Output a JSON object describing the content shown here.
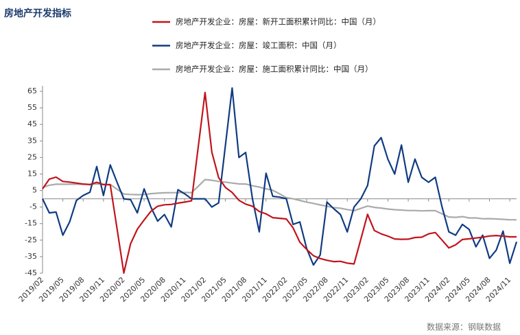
{
  "chart_data": {
    "type": "line",
    "title": "房地产开发指标",
    "source": "数据来源：钢联数据",
    "categories": [
      "2019/02",
      null,
      null,
      "2019/05",
      null,
      null,
      "2019/08",
      null,
      null,
      "2019/11",
      null,
      null,
      "2020/02",
      null,
      null,
      "2020/05",
      null,
      null,
      "2020/08",
      null,
      null,
      "2020/11",
      null,
      null,
      "2021/02",
      null,
      null,
      "2021/05",
      null,
      null,
      "2021/08",
      null,
      null,
      "2021/11",
      null,
      null,
      "2022/02",
      null,
      null,
      "2022/05",
      null,
      null,
      "2022/08",
      null,
      null,
      "2022/11",
      null,
      null,
      "2023/02",
      null,
      null,
      "2023/05",
      null,
      null,
      "2023/08",
      null,
      null,
      "2023/11",
      null,
      null,
      "2024/02",
      null,
      null,
      "2024/05",
      null,
      null,
      "2024/08",
      null,
      null,
      "2024/11",
      null
    ],
    "series": [
      {
        "name": "房地产开发企业：房屋：新开工面积累计同比：中国（月）",
        "color": "#c0141c",
        "values": [
          6,
          11.9,
          13.1,
          10.5,
          10.1,
          9.5,
          8.9,
          8.6,
          10,
          8.6,
          8.5,
          -18,
          -44.9,
          -27.2,
          -18.4,
          -12.8,
          -7.6,
          -4.5,
          -3.6,
          -3.4,
          -2.6,
          -2.0,
          -1.2,
          31.5,
          64.3,
          28.2,
          12.8,
          6.9,
          3.8,
          -0.9,
          -3.2,
          -4.5,
          -7.7,
          -9.1,
          -11.4,
          -11.8,
          -12.2,
          -17.5,
          -26.3,
          -30.6,
          -34.4,
          -36.1,
          -37.2,
          -38,
          -37.8,
          -38.9,
          -39.4,
          -24.4,
          -9.4,
          -19.2,
          -21.2,
          -22.6,
          -24.3,
          -24.5,
          -24.4,
          -23.4,
          -23.2,
          -21.2,
          -20.4,
          -25,
          -29.7,
          -27.8,
          -24.6,
          -24.2,
          -23.7,
          -23.2,
          -22.5,
          -22.2,
          -22.6,
          -23,
          -23
        ]
      },
      {
        "name": "房地产开发企业：房屋：竣工面积：中国（月）",
        "color": "#0f3b82",
        "values": [
          0,
          -8.5,
          -8,
          -22,
          -14,
          -1,
          2,
          4,
          19.5,
          2,
          20.5,
          10,
          0,
          -0.5,
          -8.5,
          6,
          -5,
          -13.5,
          -9.5,
          -17,
          5.5,
          3,
          0,
          0,
          0,
          -5,
          -2.5,
          32,
          67,
          25,
          28,
          0,
          -20,
          15.5,
          1.5,
          1,
          0,
          -15.5,
          -14,
          -30,
          -40,
          -34,
          -2,
          -6,
          -9.5,
          -20,
          -5,
          0,
          8,
          32,
          37,
          24,
          15,
          32.5,
          10,
          24,
          13,
          10,
          13,
          -5,
          -20,
          -22,
          -15.5,
          -18.5,
          -29,
          -22,
          -36,
          -31,
          -19.5,
          -39,
          -26
        ]
      },
      {
        "name": "房地产开发企业：房屋：施工面积累计同比：中国（月）",
        "color": "#aaaaaa",
        "values": [
          6.8,
          8.2,
          8.8,
          8.8,
          8.8,
          8.8,
          8.8,
          8.7,
          9.0,
          8.7,
          8.7,
          5.8,
          2.9,
          2.6,
          2.5,
          2.6,
          3.1,
          3.4,
          3.6,
          3.7,
          3.7,
          3.8,
          3.7,
          7.6,
          11.6,
          11.2,
          10.5,
          10.1,
          9.5,
          9.0,
          8.9,
          7.9,
          7.1,
          6.0,
          5.2,
          3,
          0.7,
          0.0,
          -1.0,
          -2.0,
          -2.8,
          -3.7,
          -4.5,
          -5.3,
          -5.7,
          -6.5,
          -7.2,
          -5.8,
          -4.4,
          -5.2,
          -5.6,
          -6.2,
          -6.6,
          -6.8,
          -7.1,
          -7.1,
          -7.3,
          -7.2,
          -7.2,
          -9.1,
          -11.0,
          -11.2,
          -10.8,
          -11.6,
          -11.6,
          -12.1,
          -12.0,
          -12.2,
          -12.4,
          -12.7,
          -12.7
        ]
      }
    ],
    "ylim": [
      -45,
      65
    ],
    "yticks": [
      65,
      55,
      45,
      35,
      25,
      15,
      5,
      -5,
      -15,
      -25,
      -35,
      -45
    ]
  }
}
